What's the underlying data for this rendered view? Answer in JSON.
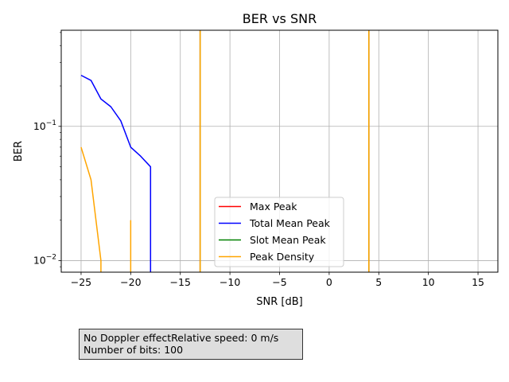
{
  "chart_data": {
    "type": "line",
    "title": "BER vs SNR",
    "xlabel": "SNR [dB]",
    "ylabel": "BER",
    "xlim": [
      -27,
      17
    ],
    "ylim": [
      0.0082,
      0.52
    ],
    "yscale": "log",
    "grid": true,
    "legend_position": "lower center",
    "x_ticks": [
      -25,
      -20,
      -15,
      -10,
      -5,
      0,
      5,
      10,
      15
    ],
    "x_tick_labels": [
      "−25",
      "−20",
      "−15",
      "−10",
      "−5",
      "0",
      "5",
      "10",
      "15"
    ],
    "y_ticks": [
      0.01,
      0.1
    ],
    "y_tick_labels": [
      {
        "base": "10",
        "exp": "−2"
      },
      {
        "base": "10",
        "exp": "−1"
      }
    ],
    "series": [
      {
        "name": "Max Peak",
        "color": "#ff0000",
        "segments": [
          [
            [
              -13,
              0.52
            ],
            [
              -13,
              0.0082
            ]
          ],
          [
            [
              4,
              0.52
            ],
            [
              4,
              0.0082
            ]
          ]
        ]
      },
      {
        "name": "Total Mean Peak",
        "color": "#0000ff",
        "segments": [
          [
            [
              -25,
              0.24
            ],
            [
              -24,
              0.22
            ],
            [
              -23,
              0.16
            ],
            [
              -22,
              0.14
            ],
            [
              -21,
              0.11
            ],
            [
              -20,
              0.07
            ],
            [
              -19,
              0.06
            ],
            [
              -18,
              0.05
            ],
            [
              -18,
              0.0082
            ]
          ]
        ]
      },
      {
        "name": "Slot Mean Peak",
        "color": "#008000",
        "segments": [
          [
            [
              -13,
              0.52
            ],
            [
              -13,
              0.0082
            ]
          ],
          [
            [
              4,
              0.52
            ],
            [
              4,
              0.0082
            ]
          ]
        ]
      },
      {
        "name": "Peak Density",
        "color": "#ffa500",
        "segments": [
          [
            [
              -25,
              0.07
            ],
            [
              -24,
              0.04
            ],
            [
              -23,
              0.01
            ],
            [
              -23,
              0.0082
            ]
          ],
          [
            [
              -20,
              0.02
            ],
            [
              -20,
              0.0082
            ]
          ],
          [
            [
              -13,
              0.52
            ],
            [
              -13,
              0.0082
            ]
          ],
          [
            [
              4,
              0.52
            ],
            [
              4,
              0.0082
            ]
          ]
        ]
      }
    ]
  },
  "info_box": {
    "line1": "No Doppler effectRelative speed: 0 m/s",
    "line2": "Number of bits: 100"
  }
}
